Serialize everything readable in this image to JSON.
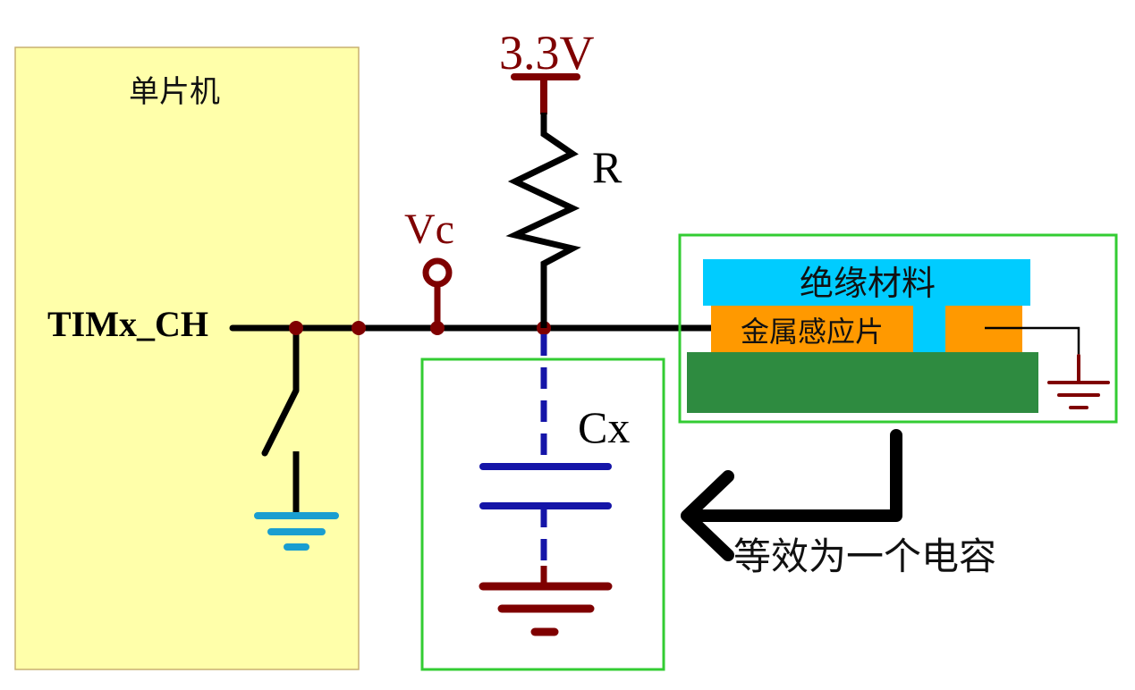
{
  "mcu": {
    "label": "单片机",
    "pin_label": "TIMx_CH"
  },
  "supply": {
    "label": "3.3V"
  },
  "resistor": {
    "label": "R"
  },
  "probe": {
    "label": "Vc"
  },
  "capacitor": {
    "label": "Cx"
  },
  "sensor": {
    "insulator_label": "绝缘材料",
    "metal_label": "金属感应片"
  },
  "note": {
    "label": "等效为一个电容"
  },
  "colors": {
    "mcu_fill": "#ffffaa",
    "wire": "#000000",
    "dark_red": "#7f0000",
    "blue": "#1515a8",
    "cyan_ground": "#1a9ed0",
    "box_green": "#33cc33",
    "insulator": "#00ccff",
    "metal": "#ff9900",
    "pcb": "#2e8b40"
  }
}
